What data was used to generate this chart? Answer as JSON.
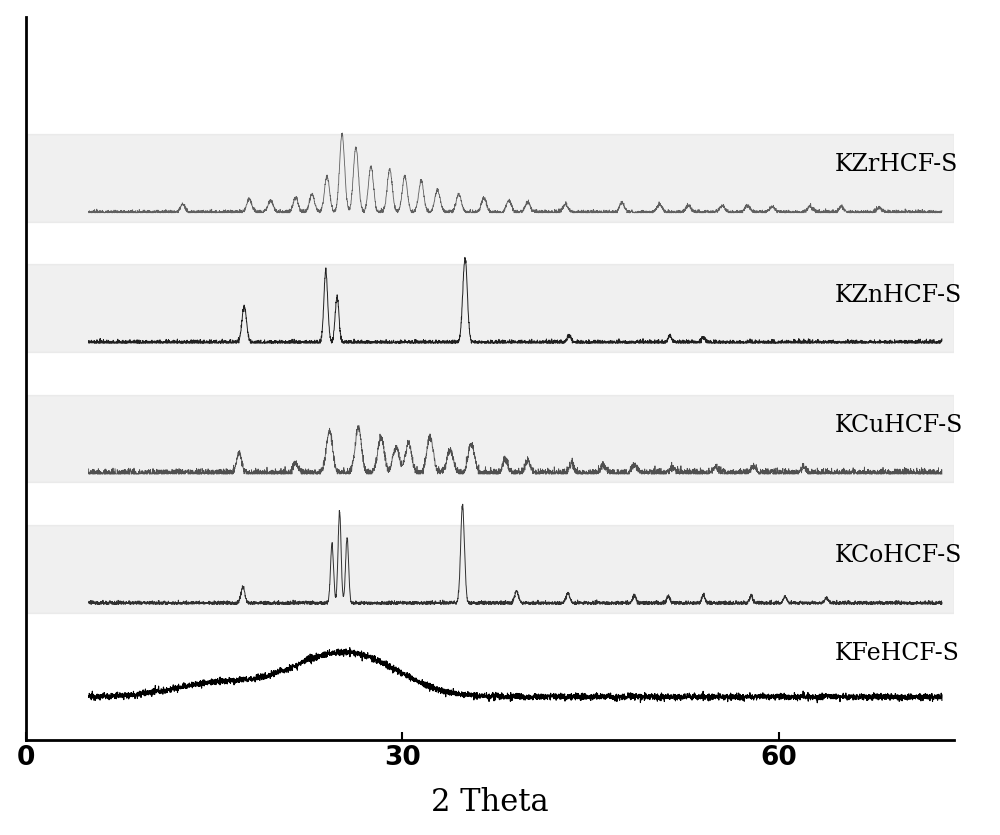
{
  "labels": [
    "KZrHCF-S",
    "KZnHCF-S",
    "KCuHCF-S",
    "KCoHCF-S",
    "KFeHCF-S"
  ],
  "line_color": "#404040",
  "kfe_color": "#000000",
  "x_ticks": [
    0,
    30,
    60
  ],
  "x_label": "2 Theta",
  "offsets": [
    7.5,
    5.5,
    3.5,
    1.5,
    0.0
  ],
  "background_color": "#ffffff",
  "label_fontsize": 17,
  "xlabel_fontsize": 22,
  "tick_fontsize": 19,
  "figsize": [
    10.0,
    8.35
  ],
  "dpi": 100
}
